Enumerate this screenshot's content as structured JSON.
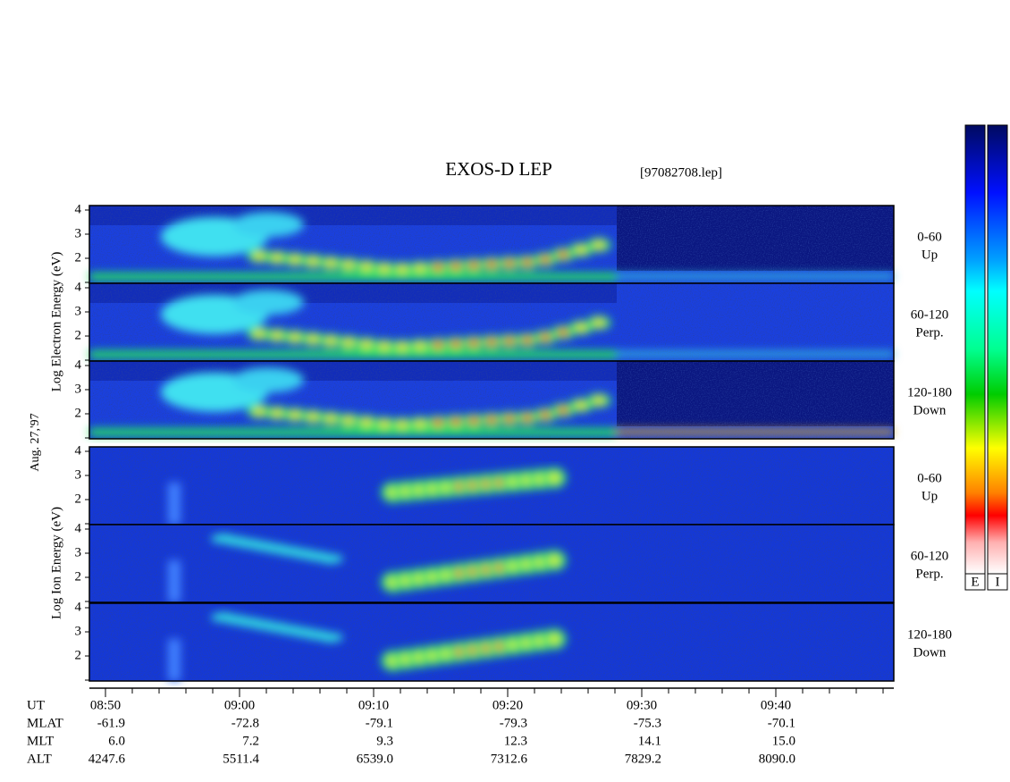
{
  "header": {
    "title": "EXOS-D LEP",
    "file": "[97082708.lep]"
  },
  "date": "Aug. 27,'97",
  "axis_labels": {
    "electron": "Log    Electron    Energy (eV)",
    "ion": "Log     Ion    Energy (eV)"
  },
  "energy_ticks": [
    "4",
    "3",
    "2"
  ],
  "panels": [
    {
      "angle": "0-60",
      "direction": "Up"
    },
    {
      "angle": "60-120",
      "direction": "Perp."
    },
    {
      "angle": "120-180",
      "direction": "Down"
    },
    {
      "angle": "0-60",
      "direction": "Up"
    },
    {
      "angle": "60-120",
      "direction": "Perp."
    },
    {
      "angle": "120-180",
      "direction": "Down"
    }
  ],
  "time_axis": {
    "rows": [
      {
        "label": "UT",
        "values": [
          "08:50",
          "09:00",
          "09:10",
          "09:20",
          "09:30",
          "09:40"
        ]
      },
      {
        "label": "MLAT",
        "values": [
          "-61.9",
          "-72.8",
          "-79.1",
          "-79.3",
          "-75.3",
          "-70.1"
        ]
      },
      {
        "label": "MLT",
        "values": [
          "6.0",
          "7.2",
          "9.3",
          "12.3",
          "14.1",
          "15.0"
        ]
      },
      {
        "label": "ALT",
        "values": [
          "4247.6",
          "5511.4",
          "6539.0",
          "7312.6",
          "7829.2",
          "8090.0"
        ]
      }
    ]
  },
  "colorbar": {
    "labels": [
      "E",
      "I"
    ]
  }
}
